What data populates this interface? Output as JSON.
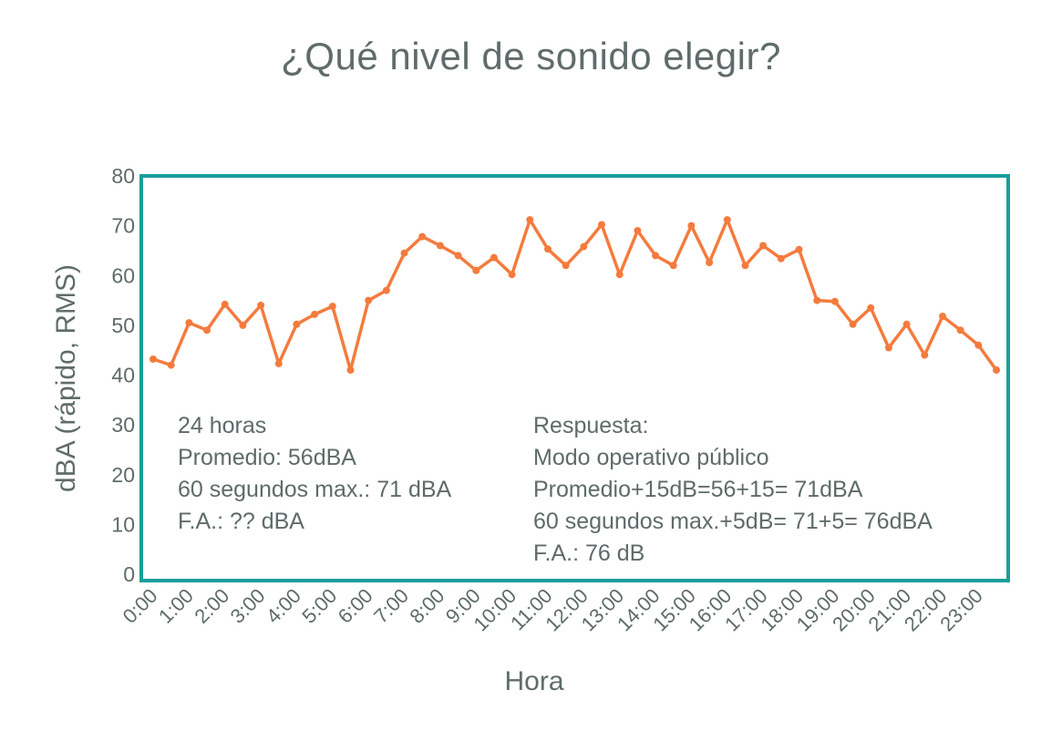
{
  "chart_data": {
    "type": "line",
    "title": "¿Qué nivel de sonido elegir?",
    "xlabel": "Hora",
    "ylabel": "dBA (rápido, RMS)",
    "ylim": [
      0,
      80
    ],
    "yticks": [
      0,
      10,
      20,
      30,
      40,
      50,
      60,
      70,
      80
    ],
    "xtick_labels": [
      "0:00",
      "1:00",
      "2:00",
      "3:00",
      "4:00",
      "5:00",
      "6:00",
      "7:00",
      "8:00",
      "9:00",
      "10:00",
      "11:00",
      "12:00",
      "13:00",
      "14:00",
      "15:00",
      "16:00",
      "17:00",
      "18:00",
      "19:00",
      "20:00",
      "21:00",
      "22:00",
      "23:00"
    ],
    "x_hours": [
      0,
      0.5,
      1,
      1.5,
      2,
      2.5,
      3,
      3.5,
      4,
      4.5,
      5,
      5.5,
      6,
      6.5,
      7,
      7.5,
      8,
      8.5,
      9,
      9.5,
      10,
      10.5,
      11,
      11.5,
      12,
      12.5,
      13,
      13.5,
      14,
      14.5,
      15,
      15.5,
      16,
      16.5,
      17,
      17.5,
      18,
      18.5,
      19,
      19.5,
      20,
      20.5,
      21,
      21.5,
      22,
      22.5,
      23,
      23.5
    ],
    "series": [
      {
        "values": [
          43.2,
          42,
          50.5,
          49,
          54.2,
          50,
          54,
          42.3,
          50.2,
          52.2,
          53.8,
          41,
          55,
          57,
          64.5,
          67.8,
          66,
          64,
          61,
          63.6,
          60.2,
          71.2,
          65.3,
          62,
          65.8,
          70.2,
          60.2,
          69,
          64,
          62,
          70,
          62.6,
          71.2,
          62,
          66,
          63.4,
          65.2,
          55,
          54.8,
          50.2,
          53.5,
          45.5,
          50.2,
          44,
          51.8,
          49,
          46,
          41
        ]
      }
    ],
    "grid": false,
    "colors": {
      "line": "#f47b3e",
      "frame": "#1a9e9a",
      "text": "#5f6b6a"
    }
  },
  "annotations": {
    "left_lines": [
      "24 horas",
      "Promedio: 56dBA",
      "60 segundos max.: 71 dBA",
      "F.A.: ?? dBA"
    ],
    "right_lines": [
      "Respuesta:",
      "Modo operativo público",
      "Promedio+15dB=56+15= 71dBA",
      "60 segundos max.+5dB= 71+5= 76dBA",
      "F.A.: 76 dB"
    ]
  }
}
